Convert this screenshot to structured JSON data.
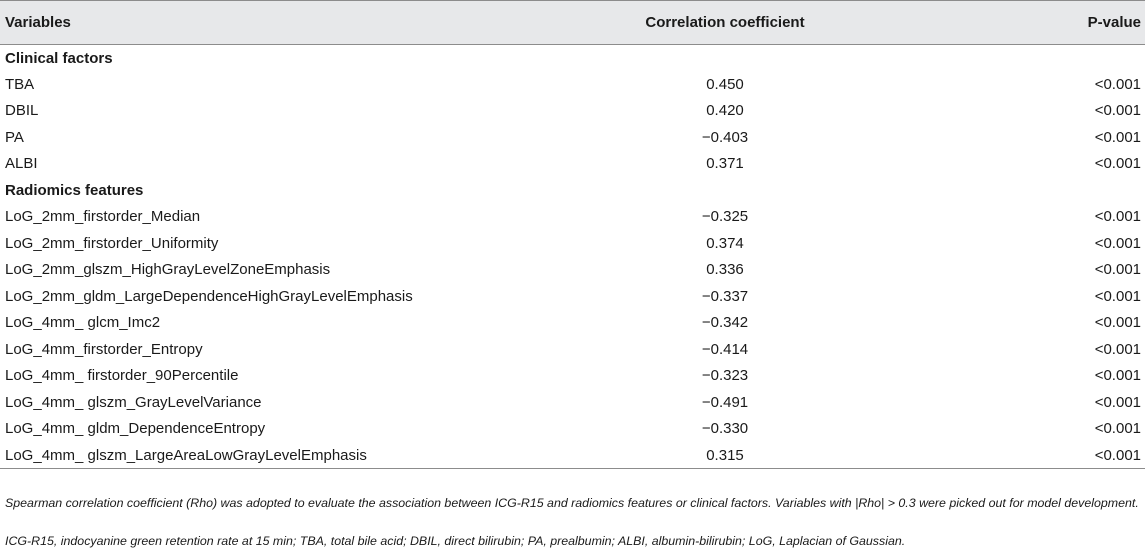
{
  "table": {
    "headers": [
      "Variables",
      "Correlation coefficient",
      "P-value"
    ],
    "sections": [
      {
        "title": "Clinical factors",
        "rows": [
          {
            "variable": "TBA",
            "coefficient": "0.450",
            "p_value": "<0.001"
          },
          {
            "variable": "DBIL",
            "coefficient": "0.420",
            "p_value": "<0.001"
          },
          {
            "variable": "PA",
            "coefficient": "−0.403",
            "p_value": "<0.001"
          },
          {
            "variable": "ALBI",
            "coefficient": "0.371",
            "p_value": "<0.001"
          }
        ]
      },
      {
        "title": "Radiomics features",
        "rows": [
          {
            "variable": "LoG_2mm_firstorder_Median",
            "coefficient": "−0.325",
            "p_value": "<0.001"
          },
          {
            "variable": "LoG_2mm_firstorder_Uniformity",
            "coefficient": "0.374",
            "p_value": "<0.001"
          },
          {
            "variable": "LoG_2mm_glszm_HighGrayLevelZoneEmphasis",
            "coefficient": "0.336",
            "p_value": "<0.001"
          },
          {
            "variable": "LoG_2mm_gldm_LargeDependenceHighGrayLevelEmphasis",
            "coefficient": "−0.337",
            "p_value": "<0.001"
          },
          {
            "variable": "LoG_4mm_ glcm_Imc2",
            "coefficient": "−0.342",
            "p_value": "<0.001"
          },
          {
            "variable": "LoG_4mm_firstorder_Entropy",
            "coefficient": "−0.414",
            "p_value": "<0.001"
          },
          {
            "variable": "LoG_4mm_ firstorder_90Percentile",
            "coefficient": "−0.323",
            "p_value": "<0.001"
          },
          {
            "variable": "LoG_4mm_ glszm_GrayLevelVariance",
            "coefficient": "−0.491",
            "p_value": "<0.001"
          },
          {
            "variable": "LoG_4mm_ gldm_DependenceEntropy",
            "coefficient": "−0.330",
            "p_value": "<0.001"
          },
          {
            "variable": "LoG_4mm_ glszm_LargeAreaLowGrayLevelEmphasis",
            "coefficient": "0.315",
            "p_value": "<0.001"
          }
        ]
      }
    ]
  },
  "footnotes": {
    "method": "Spearman correlation coefficient (Rho) was adopted to evaluate the association between ICG-R15 and radiomics features or clinical factors. Variables with |Rho| > 0.3 were picked out for model development.",
    "abbreviations": "ICG-R15, indocyanine green retention rate at 15 min; TBA, total bile acid; DBIL, direct bilirubin; PA, prealbumin; ALBI, albumin-bilirubin; LoG, Laplacian of Gaussian."
  }
}
